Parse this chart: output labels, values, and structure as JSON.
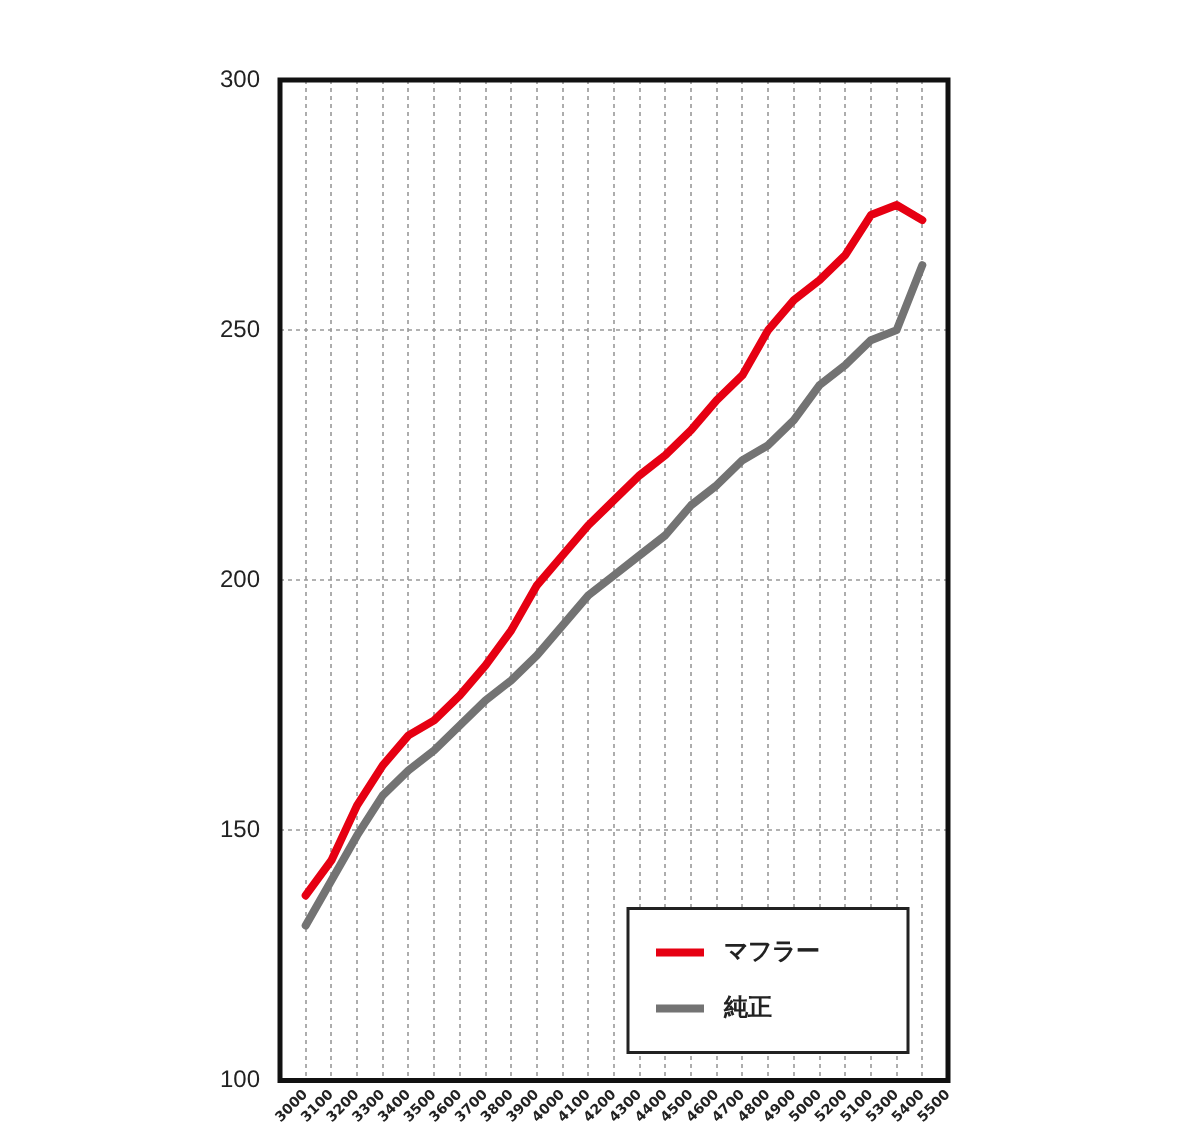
{
  "chart_data": {
    "type": "line",
    "categories": [
      "3000",
      "3100",
      "3200",
      "3300",
      "3400",
      "3500",
      "3600",
      "3700",
      "3800",
      "3900",
      "4000",
      "4100",
      "4200",
      "4300",
      "4400",
      "4500",
      "4600",
      "4700",
      "4800",
      "4900",
      "5000",
      "5200",
      "5100",
      "5300",
      "5400",
      "5500"
    ],
    "series": [
      {
        "name": "マフラー",
        "color": "#e60012",
        "values": [
          137,
          144,
          155,
          163,
          169,
          172,
          177,
          183,
          190,
          199,
          205,
          211,
          216,
          221,
          225,
          230,
          236,
          241,
          250,
          256,
          260,
          265,
          273,
          275,
          272,
          null
        ]
      },
      {
        "name": "純正",
        "color": "#737373",
        "values": [
          131,
          140,
          149,
          157,
          162,
          166,
          171,
          176,
          180,
          185,
          191,
          197,
          201,
          205,
          209,
          215,
          219,
          224,
          227,
          232,
          239,
          243,
          248,
          250,
          263,
          null
        ]
      }
    ],
    "ylim": [
      100,
      300
    ],
    "yticks": [
      100,
      150,
      200,
      250,
      300
    ],
    "grid": true,
    "legend": "bottom right",
    "marker": "none",
    "line_style": "solid"
  }
}
